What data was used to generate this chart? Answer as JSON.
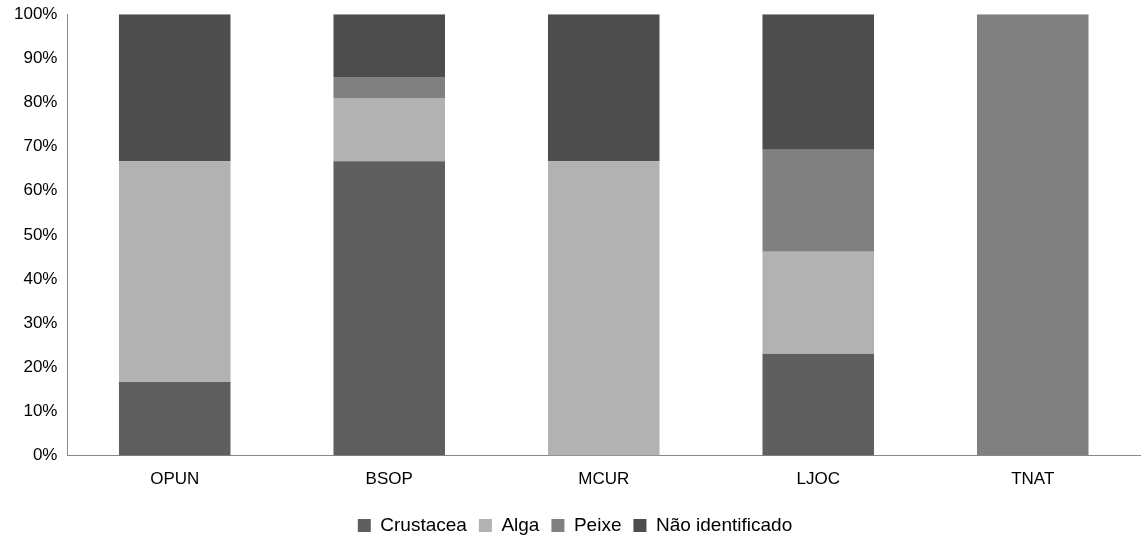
{
  "chart_data": {
    "type": "bar",
    "stacked": true,
    "categories": [
      "OPUN",
      "BSOP",
      "MCUR",
      "LJOC",
      "TNAT"
    ],
    "series": [
      {
        "name": "Crustacea",
        "color": "#5f5f5f",
        "values": [
          16.7,
          66.7,
          0,
          23.1,
          0
        ]
      },
      {
        "name": "Alga",
        "color": "#b2b2b2",
        "values": [
          50,
          14.3,
          66.7,
          23.1,
          0
        ]
      },
      {
        "name": "Peixe",
        "color": "#808080",
        "values": [
          0,
          4.8,
          0,
          23.1,
          100
        ]
      },
      {
        "name": "Não identificado",
        "color": "#4d4d4d",
        "values": [
          33.3,
          14.2,
          33.3,
          30.7,
          0
        ]
      }
    ],
    "ylim": [
      0,
      100
    ],
    "yticks": [
      {
        "value": 0,
        "label": "0%"
      },
      {
        "value": 10,
        "label": "10%"
      },
      {
        "value": 20,
        "label": "20%"
      },
      {
        "value": 30,
        "label": "30%"
      },
      {
        "value": 40,
        "label": "40%"
      },
      {
        "value": 50,
        "label": "50%"
      },
      {
        "value": 60,
        "label": "60%"
      },
      {
        "value": 70,
        "label": "70%"
      },
      {
        "value": 80,
        "label": "80%"
      },
      {
        "value": 90,
        "label": "90%"
      },
      {
        "value": 100,
        "label": "100%"
      }
    ],
    "grid": false,
    "legend": "bottom"
  }
}
